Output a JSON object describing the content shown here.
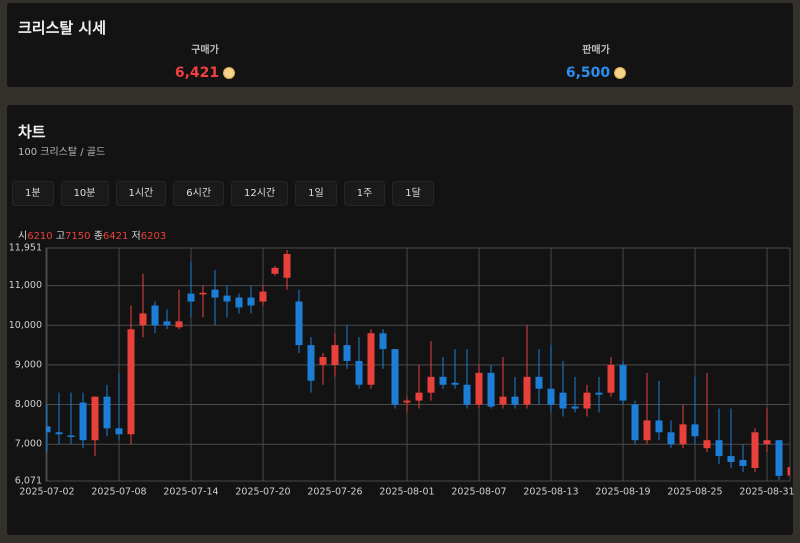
{
  "price_panel": {
    "title": "크리스탈 시세",
    "buy": {
      "label": "구매가",
      "price": "6,421"
    },
    "sell": {
      "label": "판매가",
      "price": "6,500"
    }
  },
  "chart_panel": {
    "title": "차트",
    "subtitle": "100 크리스탈 / 골드",
    "intervals": [
      "1분",
      "10분",
      "1시간",
      "6시간",
      "12시간",
      "1일",
      "1주",
      "1달"
    ]
  },
  "chart_data": {
    "type": "candlestick",
    "x": [
      "2025-07-02",
      "2025-07-03",
      "2025-07-04",
      "2025-07-05",
      "2025-07-06",
      "2025-07-07",
      "2025-07-08",
      "2025-07-09",
      "2025-07-10",
      "2025-07-11",
      "2025-07-12",
      "2025-07-13",
      "2025-07-14",
      "2025-07-15",
      "2025-07-16",
      "2025-07-17",
      "2025-07-18",
      "2025-07-19",
      "2025-07-20",
      "2025-07-21",
      "2025-07-22",
      "2025-07-23",
      "2025-07-24",
      "2025-07-25",
      "2025-07-26",
      "2025-07-27",
      "2025-07-28",
      "2025-07-29",
      "2025-07-30",
      "2025-07-31",
      "2025-08-01",
      "2025-08-02",
      "2025-08-03",
      "2025-08-04",
      "2025-08-05",
      "2025-08-06",
      "2025-08-07",
      "2025-08-08",
      "2025-08-09",
      "2025-08-10",
      "2025-08-11",
      "2025-08-12",
      "2025-08-13",
      "2025-08-14",
      "2025-08-15",
      "2025-08-16",
      "2025-08-17",
      "2025-08-18",
      "2025-08-19",
      "2025-08-20",
      "2025-08-21",
      "2025-08-22",
      "2025-08-23",
      "2025-08-24",
      "2025-08-25",
      "2025-08-26",
      "2025-08-27",
      "2025-08-28",
      "2025-08-29",
      "2025-08-30",
      "2025-08-31",
      "2025-09-01",
      "2025-09-02"
    ],
    "open": [
      7450,
      7300,
      7220,
      8050,
      7100,
      8200,
      7400,
      7250,
      10000,
      10500,
      10100,
      9950,
      10800,
      10780,
      10900,
      10750,
      10700,
      10700,
      10600,
      11300,
      11200,
      10600,
      9500,
      9000,
      9000,
      9500,
      9100,
      8500,
      9800,
      9400,
      8050,
      8100,
      8300,
      8700,
      8550,
      8500,
      8000,
      8800,
      8000,
      8200,
      8000,
      8700,
      8400,
      8300,
      7950,
      7900,
      8300,
      8300,
      9000,
      8000,
      7100,
      7600,
      7300,
      7000,
      7500,
      6900,
      7100,
      6700,
      6600,
      6400,
      7000,
      7100,
      6210
    ],
    "high": [
      8000,
      8300,
      8300,
      8300,
      8200,
      8500,
      8800,
      10500,
      11300,
      10600,
      10400,
      10900,
      11600,
      11000,
      11400,
      11000,
      10800,
      11000,
      11000,
      11500,
      11900,
      10900,
      9700,
      9300,
      9800,
      10000,
      9700,
      9900,
      9900,
      9400,
      8200,
      9000,
      9600,
      9200,
      9400,
      9400,
      9000,
      9000,
      9200,
      8700,
      10000,
      9400,
      9500,
      9100,
      8700,
      8500,
      8700,
      9200,
      9100,
      8100,
      8800,
      8600,
      7600,
      8000,
      8700,
      8800,
      7900,
      7900,
      7000,
      7400,
      7900,
      7100,
      7150
    ],
    "low": [
      6800,
      7000,
      7000,
      6900,
      6700,
      7200,
      7100,
      7000,
      9700,
      9800,
      9900,
      9900,
      10200,
      10200,
      10000,
      10200,
      10300,
      10300,
      10500,
      11250,
      10900,
      9300,
      8300,
      8500,
      8700,
      8900,
      8400,
      8400,
      8900,
      7900,
      7800,
      7900,
      8100,
      8400,
      8400,
      7900,
      7900,
      7900,
      7900,
      7900,
      7900,
      8000,
      7800,
      7700,
      7800,
      7700,
      7800,
      8200,
      8000,
      7000,
      7000,
      7100,
      6900,
      6900,
      7000,
      6800,
      6500,
      6400,
      6300,
      6300,
      6800,
      6100,
      6203
    ],
    "close": [
      7300,
      7250,
      7180,
      7100,
      8200,
      7400,
      7250,
      9900,
      10300,
      10000,
      10000,
      10100,
      10600,
      10820,
      10700,
      10600,
      10450,
      10500,
      10850,
      11450,
      11800,
      9500,
      8600,
      9200,
      9500,
      9100,
      8500,
      9800,
      9400,
      8000,
      8100,
      8300,
      8700,
      8500,
      8500,
      8000,
      8800,
      7950,
      8200,
      8000,
      8700,
      8400,
      8000,
      7900,
      7900,
      8300,
      8250,
      9000,
      8100,
      7100,
      7600,
      7300,
      7000,
      7500,
      7200,
      7100,
      6700,
      6550,
      6450,
      7300,
      7100,
      6200,
      6421
    ],
    "ohlc_labels": [
      "시",
      "고",
      "종",
      "저"
    ],
    "up_color": "#e8413c",
    "down_color": "#1c7ed6",
    "ylim": [
      6071,
      11951
    ],
    "yticks": [
      {
        "value": 6071,
        "label": "6,071"
      },
      {
        "value": 7000,
        "label": "7,000"
      },
      {
        "value": 8000,
        "label": "8,000"
      },
      {
        "value": 9000,
        "label": "9,000"
      },
      {
        "value": 10000,
        "label": "10,000"
      },
      {
        "value": 11000,
        "label": "11,000"
      },
      {
        "value": 11951,
        "label": "11,951"
      }
    ],
    "xticks": [
      "2025-07-02",
      "2025-07-08",
      "2025-07-14",
      "2025-07-20",
      "2025-07-26",
      "2025-08-01",
      "2025-08-07",
      "2025-08-13",
      "2025-08-19",
      "2025-08-25",
      "2025-08-31"
    ],
    "grid": true
  }
}
